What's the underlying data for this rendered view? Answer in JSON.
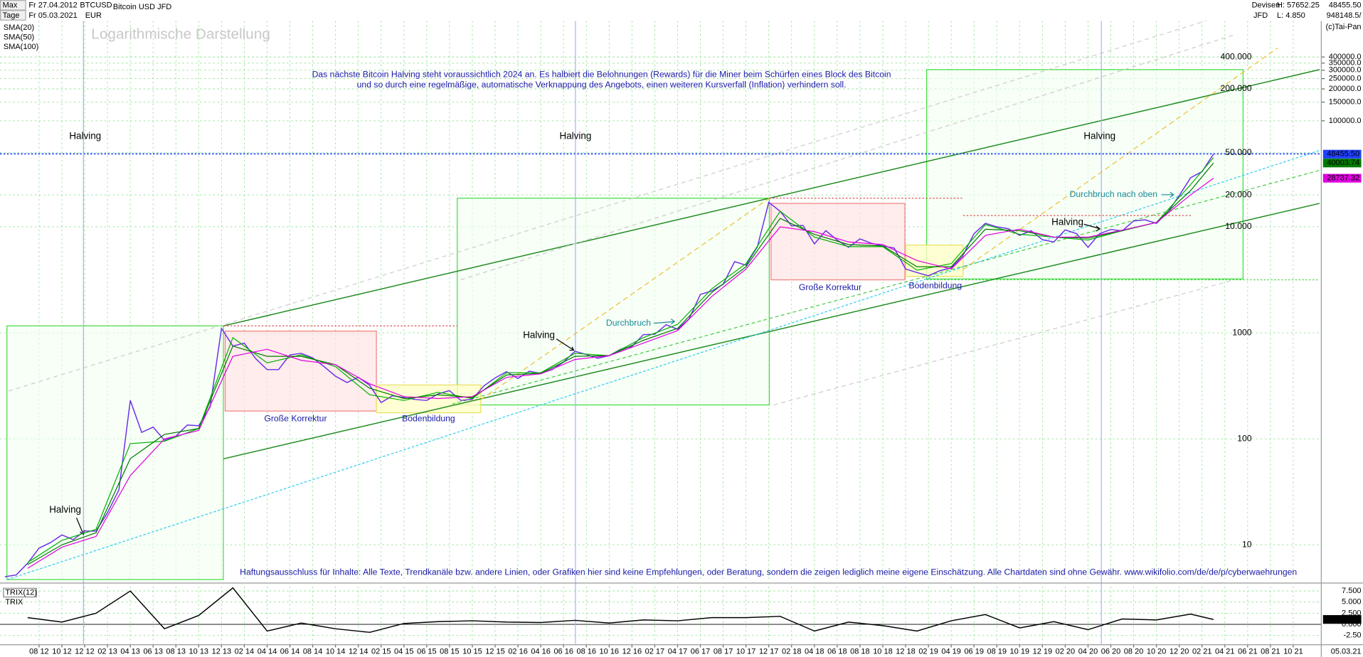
{
  "header": {
    "range": "Max",
    "period": "Tage",
    "from": "Fr 27.04.2012",
    "to": "Fr 05.03.2021",
    "currency": "EUR",
    "name": "Bitcoin USD JFD",
    "market": "Devisen",
    "broker": "JFD",
    "high": "H: 57652.25",
    "low": "L: 4.850",
    "last": "48455.50",
    "volume": "948148.5/",
    "copyright": "(c)Tai-Pan",
    "end_date": "05.03.21"
  },
  "chart_data": [
    {
      "type": "line",
      "log_scale": true,
      "grid": true,
      "title": "Logarithmische Darstellung",
      "annotations": [
        "Das nächste Bitcoin Halving steht voraussichtlich 2024 an. Es halbiert die Belohnungen (Rewards) für die Miner beim Schürfen eines Block des Bitcoin",
        "und so durch eine regelmäßige, automatische Verknappung des Angebots, einen weiteren Kursverfall (Inflation) verhindern soll.",
        "Halving",
        "Halving",
        "Halving",
        "Halving",
        "Halving",
        "Halving",
        "Große Korrektur",
        "Große Korrektur",
        "Bodenbildung",
        "Bodenbildung",
        "Durchbruch",
        "Durchbruch nach oben",
        "Haftungsausschluss für Inhalte: Alle Texte, Trendkanäle bzw. andere Linien, oder Grafiken hier sind keine Empfehlungen, oder Beratung, sondern die zeigen lediglich meine eigene Einschätzung. Alle Chartdaten sind ohne Gewähr.  www.wikifolio.com/de/de/p/cyberwaehrungen"
      ],
      "xlim": [
        "2012-05",
        "2021-12"
      ],
      "ylim": [
        4.61,
        1377000
      ],
      "xticks": [
        {
          "value": "2012-08",
          "label": "08 12"
        },
        {
          "value": "2012-10",
          "label": "10 12"
        },
        {
          "value": "2012-12",
          "label": "12 12"
        },
        {
          "value": "2013-02",
          "label": "02 13"
        },
        {
          "value": "2013-04",
          "label": "04 13"
        },
        {
          "value": "2013-06",
          "label": "06 13"
        },
        {
          "value": "2013-08",
          "label": "08 13"
        },
        {
          "value": "2013-10",
          "label": "10 13"
        },
        {
          "value": "2013-12",
          "label": "12 13"
        },
        {
          "value": "2014-02",
          "label": "02 14"
        },
        {
          "value": "2014-04",
          "label": "04 14"
        },
        {
          "value": "2014-06",
          "label": "06 14"
        },
        {
          "value": "2014-08",
          "label": "08 14"
        },
        {
          "value": "2014-10",
          "label": "10 14"
        },
        {
          "value": "2014-12",
          "label": "12 14"
        },
        {
          "value": "2015-02",
          "label": "02 15"
        },
        {
          "value": "2015-04",
          "label": "04 15"
        },
        {
          "value": "2015-06",
          "label": "06 15"
        },
        {
          "value": "2015-08",
          "label": "08 15"
        },
        {
          "value": "2015-10",
          "label": "10 15"
        },
        {
          "value": "2015-12",
          "label": "12 15"
        },
        {
          "value": "2016-02",
          "label": "02 16"
        },
        {
          "value": "2016-04",
          "label": "04 16"
        },
        {
          "value": "2016-06",
          "label": "06 16"
        },
        {
          "value": "2016-08",
          "label": "08 16"
        },
        {
          "value": "2016-10",
          "label": "10 16"
        },
        {
          "value": "2016-12",
          "label": "12 16"
        },
        {
          "value": "2017-02",
          "label": "02 17"
        },
        {
          "value": "2017-04",
          "label": "04 17"
        },
        {
          "value": "2017-06",
          "label": "06 17"
        },
        {
          "value": "2017-08",
          "label": "08 17"
        },
        {
          "value": "2017-10",
          "label": "10 17"
        },
        {
          "value": "2017-12",
          "label": "12 17"
        },
        {
          "value": "2018-02",
          "label": "02 18"
        },
        {
          "value": "2018-04",
          "label": "04 18"
        },
        {
          "value": "2018-06",
          "label": "06 18"
        },
        {
          "value": "2018-08",
          "label": "08 18"
        },
        {
          "value": "2018-10",
          "label": "10 18"
        },
        {
          "value": "2018-12",
          "label": "12 18"
        },
        {
          "value": "2019-02",
          "label": "02 19"
        },
        {
          "value": "2019-04",
          "label": "04 19"
        },
        {
          "value": "2019-06",
          "label": "06 19"
        },
        {
          "value": "2019-08",
          "label": "08 19"
        },
        {
          "value": "2019-10",
          "label": "10 19"
        },
        {
          "value": "2019-12",
          "label": "12 19"
        },
        {
          "value": "2020-02",
          "label": "02 20"
        },
        {
          "value": "2020-04",
          "label": "04 20"
        },
        {
          "value": "2020-06",
          "label": "06 20"
        },
        {
          "value": "2020-08",
          "label": "08 20"
        },
        {
          "value": "2020-10",
          "label": "10 20"
        },
        {
          "value": "2020-12",
          "label": "12 20"
        },
        {
          "value": "2021-02",
          "label": "02 21"
        },
        {
          "value": "2021-04",
          "label": "04 21"
        },
        {
          "value": "2021-06",
          "label": "06 21"
        },
        {
          "value": "2021-08",
          "label": "08 21"
        },
        {
          "value": "2021-10",
          "label": "10 21"
        }
      ],
      "yticks": [
        10,
        100,
        1000,
        {
          "value": 10000,
          "label": "10.000"
        },
        {
          "value": 20000,
          "label": "20.000"
        },
        {
          "value": 50000,
          "label": "50.000"
        },
        {
          "value": 200000,
          "label": "200.000"
        },
        {
          "value": 400000,
          "label": "400.000"
        }
      ],
      "yticks_right": [
        {
          "value": 100000,
          "label": "100000.0"
        },
        {
          "value": 150000,
          "label": "150000.0"
        },
        {
          "value": 200000,
          "label": "200000.0"
        },
        {
          "value": 250000,
          "label": "250000.0"
        },
        {
          "value": 300000,
          "label": "300000.0"
        },
        {
          "value": 350000,
          "label": "350000.0"
        },
        {
          "value": 400000,
          "label": "400000.0"
        }
      ],
      "series": [
        {
          "name": "BTCUSD",
          "color": "#6a2ee8",
          "x": [
            "2012-05",
            "2012-06",
            "2012-07",
            "2012-08",
            "2012-09",
            "2012-10",
            "2012-11",
            "2012-12",
            "2013-01",
            "2013-02",
            "2013-03",
            "2013-04",
            "2013-05",
            "2013-06",
            "2013-07",
            "2013-08",
            "2013-09",
            "2013-10",
            "2013-11",
            "2013-12",
            "2014-01",
            "2014-02",
            "2014-03",
            "2014-04",
            "2014-05",
            "2014-06",
            "2014-07",
            "2014-08",
            "2014-09",
            "2014-10",
            "2014-11",
            "2014-12",
            "2015-01",
            "2015-02",
            "2015-03",
            "2015-04",
            "2015-05",
            "2015-06",
            "2015-07",
            "2015-08",
            "2015-09",
            "2015-10",
            "2015-11",
            "2015-12",
            "2016-01",
            "2016-02",
            "2016-03",
            "2016-04",
            "2016-05",
            "2016-06",
            "2016-07",
            "2016-08",
            "2016-09",
            "2016-10",
            "2016-11",
            "2016-12",
            "2017-01",
            "2017-02",
            "2017-03",
            "2017-04",
            "2017-05",
            "2017-06",
            "2017-07",
            "2017-08",
            "2017-09",
            "2017-10",
            "2017-11",
            "2017-12",
            "2018-01",
            "2018-02",
            "2018-03",
            "2018-04",
            "2018-05",
            "2018-06",
            "2018-07",
            "2018-08",
            "2018-09",
            "2018-10",
            "2018-11",
            "2018-12",
            "2019-01",
            "2019-02",
            "2019-03",
            "2019-04",
            "2019-05",
            "2019-06",
            "2019-07",
            "2019-08",
            "2019-09",
            "2019-10",
            "2019-11",
            "2019-12",
            "2020-01",
            "2020-02",
            "2020-03",
            "2020-04",
            "2020-05",
            "2020-06",
            "2020-07",
            "2020-08",
            "2020-09",
            "2020-10",
            "2020-11",
            "2020-12",
            "2021-01",
            "2021-02",
            "2021-03"
          ],
          "values": [
            5,
            5.2,
            6.7,
            9.3,
            10.5,
            12.4,
            11.2,
            13.5,
            13.5,
            20,
            33,
            230,
            115,
            129,
            97,
            106,
            135,
            133,
            200,
            1100,
            750,
            800,
            570,
            450,
            450,
            620,
            640,
            580,
            480,
            390,
            340,
            380,
            320,
            220,
            255,
            245,
            235,
            230,
            265,
            285,
            230,
            236,
            315,
            375,
            430,
            370,
            435,
            415,
            450,
            530,
            670,
            625,
            575,
            610,
            700,
            745,
            960,
            970,
            1190,
            1080,
            1350,
            2300,
            2480,
            2870,
            4700,
            4340,
            6470,
            17000,
            14000,
            10200,
            10300,
            6900,
            9200,
            7500,
            6400,
            7700,
            7000,
            6600,
            6300,
            4000,
            3700,
            3450,
            3850,
            4100,
            5300,
            8600,
            10800,
            10000,
            9600,
            8300,
            9200,
            7550,
            7200,
            9350,
            8600,
            6400,
            8600,
            9450,
            9140,
            11350,
            11650,
            10780,
            13800,
            19700,
            29000,
            33100,
            48455.5
          ]
        },
        {
          "name": "SMA(20)",
          "color": "#00b400",
          "x": [
            "2012-07",
            "2012-10",
            "2013-01",
            "2013-04",
            "2013-07",
            "2013-10",
            "2014-01",
            "2014-04",
            "2014-07",
            "2014-10",
            "2015-01",
            "2015-04",
            "2015-07",
            "2015-10",
            "2016-01",
            "2016-04",
            "2016-07",
            "2016-10",
            "2017-01",
            "2017-04",
            "2017-07",
            "2017-10",
            "2018-01",
            "2018-04",
            "2018-07",
            "2018-10",
            "2019-01",
            "2019-04",
            "2019-07",
            "2019-10",
            "2020-01",
            "2020-04",
            "2020-07",
            "2020-10",
            "2021-01",
            "2021-03"
          ],
          "values": [
            6.8,
            11,
            14,
            90,
            95,
            125,
            900,
            520,
            620,
            480,
            260,
            230,
            275,
            240,
            420,
            420,
            640,
            610,
            900,
            1200,
            2600,
            4500,
            14000,
            8000,
            6500,
            6500,
            3900,
            4500,
            10500,
            8500,
            8000,
            7500,
            9200,
            11000,
            25000,
            45000
          ]
        },
        {
          "name": "SMA(50)",
          "color": "#007a00",
          "x": [
            "2012-07",
            "2012-10",
            "2013-01",
            "2013-04",
            "2013-07",
            "2013-10",
            "2014-01",
            "2014-04",
            "2014-07",
            "2014-10",
            "2015-01",
            "2015-04",
            "2015-07",
            "2015-10",
            "2016-01",
            "2016-04",
            "2016-07",
            "2016-10",
            "2017-01",
            "2017-04",
            "2017-07",
            "2017-10",
            "2018-01",
            "2018-04",
            "2018-07",
            "2018-10",
            "2019-01",
            "2019-04",
            "2019-07",
            "2019-10",
            "2020-01",
            "2020-04",
            "2020-07",
            "2020-10",
            "2021-01",
            "2021-03"
          ],
          "values": [
            6.5,
            10,
            13,
            65,
            110,
            125,
            750,
            600,
            600,
            500,
            300,
            240,
            260,
            245,
            400,
            415,
            600,
            610,
            850,
            1100,
            2400,
            4200,
            12000,
            8500,
            6800,
            6600,
            4200,
            4200,
            9500,
            9200,
            8000,
            7800,
            9200,
            11000,
            22000,
            40003.74
          ]
        },
        {
          "name": "SMA(100)",
          "color": "#e000e0",
          "x": [
            "2012-07",
            "2012-10",
            "2013-01",
            "2013-04",
            "2013-07",
            "2013-10",
            "2014-01",
            "2014-04",
            "2014-07",
            "2014-10",
            "2015-01",
            "2015-04",
            "2015-07",
            "2015-10",
            "2016-01",
            "2016-04",
            "2016-07",
            "2016-10",
            "2017-01",
            "2017-04",
            "2017-07",
            "2017-10",
            "2018-01",
            "2018-04",
            "2018-07",
            "2018-10",
            "2019-01",
            "2019-04",
            "2019-07",
            "2019-10",
            "2020-01",
            "2020-04",
            "2020-07",
            "2020-10",
            "2021-01",
            "2021-03"
          ],
          "values": [
            6,
            9.5,
            12,
            45,
            100,
            120,
            600,
            700,
            550,
            500,
            330,
            250,
            240,
            250,
            380,
            410,
            560,
            610,
            800,
            1050,
            2200,
            4000,
            10000,
            9000,
            7200,
            6800,
            4800,
            4000,
            8300,
            9500,
            8000,
            8000,
            9300,
            11000,
            20000,
            28737.32
          ]
        }
      ]
    },
    {
      "type": "line",
      "title": "TRIX(12)",
      "ylim": [
        -4.4,
        8.5
      ],
      "yticks": [
        {
          "value": 7.5,
          "label": "7.500"
        },
        {
          "value": 5,
          "label": "5.000"
        },
        {
          "value": 2.5,
          "label": "2.500"
        },
        {
          "value": 0,
          "label": "0.000"
        },
        {
          "value": -2.5,
          "label": "-2.50"
        }
      ],
      "series": [
        {
          "name": "TRIX",
          "color": "#000000",
          "x": [
            "2012-07",
            "2012-10",
            "2013-01",
            "2013-04",
            "2013-07",
            "2013-10",
            "2014-01",
            "2014-04",
            "2014-07",
            "2014-10",
            "2015-01",
            "2015-04",
            "2015-07",
            "2015-10",
            "2016-01",
            "2016-04",
            "2016-07",
            "2016-10",
            "2017-01",
            "2017-04",
            "2017-07",
            "2017-10",
            "2018-01",
            "2018-04",
            "2018-07",
            "2018-10",
            "2019-01",
            "2019-04",
            "2019-07",
            "2019-10",
            "2020-01",
            "2020-04",
            "2020-07",
            "2020-10",
            "2021-01",
            "2021-03"
          ],
          "values": [
            1.5,
            0.5,
            2.5,
            7.5,
            -1,
            2,
            8.2,
            -1.5,
            0.3,
            -1,
            -1.8,
            0.2,
            0.6,
            0.8,
            0.5,
            0.4,
            0.9,
            0.3,
            1,
            0.8,
            1.5,
            1.5,
            1.8,
            -1.5,
            0.5,
            -0.3,
            -1.5,
            0.8,
            2.2,
            -0.8,
            0.6,
            -1.2,
            1.2,
            1.0,
            2.3,
            1.098
          ]
        }
      ]
    }
  ]
}
